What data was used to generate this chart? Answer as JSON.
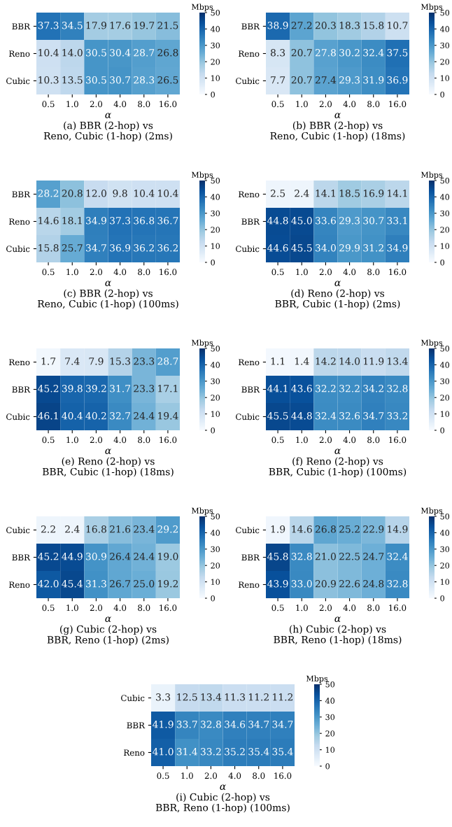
{
  "chart_data": [
    {
      "type": "heatmap",
      "title": "(a) BBR (2-hop) vs\nReno, Cubic (1-hop) (2ms)",
      "xlabel": "α",
      "clabel": "Mbps",
      "clim": [
        0,
        50
      ],
      "cticks": [
        0,
        10,
        20,
        30,
        40,
        50
      ],
      "data_labels": true,
      "categories": [
        "0.5",
        "1.0",
        "2.0",
        "4.0",
        "8.0",
        "16.0"
      ],
      "y_categories": [
        "BBR",
        "Reno",
        "Cubic"
      ],
      "cells": [
        [
          37.3,
          34.5,
          17.9,
          17.6,
          19.7,
          21.5
        ],
        [
          10.4,
          14.0,
          30.5,
          30.4,
          28.7,
          26.8
        ],
        [
          10.3,
          13.5,
          30.5,
          30.7,
          28.3,
          26.5
        ]
      ],
      "cell_labels": [
        [
          "37.3",
          "34.5",
          "17.9",
          "17.6",
          "19.7",
          "21.5"
        ],
        [
          "10.4",
          "14.0",
          "30.5",
          "30.4",
          "28.7",
          "26.8"
        ],
        [
          "10.3",
          "13.5",
          "30.5",
          "30.7",
          "28.3",
          "26.5"
        ]
      ]
    },
    {
      "type": "heatmap",
      "title": "(b) BBR (2-hop) vs\nReno, Cubic (1-hop) (18ms)",
      "xlabel": "α",
      "clabel": "Mbps",
      "clim": [
        0,
        50
      ],
      "cticks": [
        0,
        10,
        20,
        30,
        40,
        50
      ],
      "data_labels": true,
      "categories": [
        "0.5",
        "1.0",
        "2.0",
        "4.0",
        "8.0",
        "16.0"
      ],
      "y_categories": [
        "BBR",
        "Reno",
        "Cubic"
      ],
      "cells": [
        [
          38.9,
          27.2,
          20.3,
          18.3,
          15.8,
          10.7
        ],
        [
          8.3,
          20.7,
          27.8,
          30.2,
          32.4,
          37.5
        ],
        [
          7.7,
          20.7,
          27.4,
          29.3,
          31.9,
          36.9
        ]
      ]
    },
    {
      "type": "heatmap",
      "title": "(c) BBR (2-hop) vs\nReno, Cubic (1-hop) (100ms)",
      "xlabel": "α",
      "clabel": "Mbps",
      "clim": [
        0,
        50
      ],
      "cticks": [
        0,
        10,
        20,
        30,
        40,
        50
      ],
      "data_labels": true,
      "categories": [
        "0.5",
        "1.0",
        "2.0",
        "4.0",
        "8.0",
        "16.0"
      ],
      "y_categories": [
        "BBR",
        "Reno",
        "Cubic"
      ],
      "cells": [
        [
          28.2,
          20.8,
          12.0,
          9.8,
          10.4,
          10.4
        ],
        [
          14.6,
          18.1,
          34.9,
          37.3,
          36.8,
          36.7
        ],
        [
          15.8,
          25.7,
          34.7,
          36.9,
          36.2,
          36.2
        ]
      ],
      "cell_labels": [
        [
          "28.2",
          "20.8",
          "12.0",
          "9.8",
          "10.4",
          "10.4"
        ],
        [
          "14.6",
          "18.1",
          "34.9",
          "37.3",
          "36.8",
          "36.7"
        ],
        [
          "15.8",
          "25.7",
          "34.7",
          "36.9",
          "36.2",
          "36.2"
        ]
      ]
    },
    {
      "type": "heatmap",
      "title": "(d) Reno (2-hop) vs\nBBR, Cubic (1-hop) (2ms)",
      "xlabel": "α",
      "clabel": "Mbps",
      "clim": [
        0,
        50
      ],
      "cticks": [
        0,
        10,
        20,
        30,
        40,
        50
      ],
      "data_labels": true,
      "categories": [
        "0.5",
        "1.0",
        "2.0",
        "4.0",
        "8.0",
        "16.0"
      ],
      "y_categories": [
        "Reno",
        "BBR",
        "Cubic"
      ],
      "cells": [
        [
          2.5,
          2.4,
          14.1,
          18.5,
          16.9,
          14.1
        ],
        [
          44.8,
          45.0,
          33.6,
          29.3,
          30.7,
          33.1
        ],
        [
          44.6,
          45.5,
          34.0,
          29.9,
          31.2,
          34.9
        ]
      ],
      "cell_labels": [
        [
          "2.5",
          "2.4",
          "14.1",
          "18.5",
          "16.9",
          "14.1"
        ],
        [
          "44.8",
          "45.0",
          "33.6",
          "29.3",
          "30.7",
          "33.1"
        ],
        [
          "44.6",
          "45.5",
          "34.0",
          "29.9",
          "31.2",
          "34.9"
        ]
      ]
    },
    {
      "type": "heatmap",
      "title": "(e) Reno (2-hop) vs\nBBR, Cubic (1-hop) (18ms)",
      "xlabel": "α",
      "clabel": "Mbps",
      "clim": [
        0,
        50
      ],
      "cticks": [
        0,
        10,
        20,
        30,
        40,
        50
      ],
      "data_labels": true,
      "categories": [
        "0.5",
        "1.0",
        "2.0",
        "4.0",
        "8.0",
        "16.0"
      ],
      "y_categories": [
        "Reno",
        "BBR",
        "Cubic"
      ],
      "cells": [
        [
          1.7,
          7.4,
          7.9,
          15.3,
          23.3,
          28.7
        ],
        [
          45.2,
          39.8,
          39.2,
          31.7,
          23.3,
          17.1
        ],
        [
          46.1,
          40.4,
          40.2,
          32.7,
          24.4,
          19.4
        ]
      ]
    },
    {
      "type": "heatmap",
      "title": "(f) Reno (2-hop) vs\nBBR, Cubic (1-hop) (100ms)",
      "xlabel": "α",
      "clabel": "Mbps",
      "clim": [
        0,
        50
      ],
      "cticks": [
        0,
        10,
        20,
        30,
        40,
        50
      ],
      "data_labels": true,
      "categories": [
        "0.5",
        "1.0",
        "2.0",
        "4.0",
        "8.0",
        "16.0"
      ],
      "y_categories": [
        "Reno",
        "BBR",
        "Cubic"
      ],
      "cells": [
        [
          1.1,
          1.4,
          14.2,
          14.0,
          11.9,
          13.4
        ],
        [
          44.1,
          43.6,
          32.2,
          32.2,
          34.2,
          32.8
        ],
        [
          45.5,
          44.8,
          32.4,
          32.6,
          34.7,
          33.2
        ]
      ],
      "cell_labels": [
        [
          "1.1",
          "1.4",
          "14.2",
          "14.0",
          "11.9",
          "13.4"
        ],
        [
          "44.1",
          "43.6",
          "32.2",
          "32.2",
          "34.2",
          "32.8"
        ],
        [
          "45.5",
          "44.8",
          "32.4",
          "32.6",
          "34.7",
          "33.2"
        ]
      ]
    },
    {
      "type": "heatmap",
      "title": "(g) Cubic (2-hop) vs\nBBR, Reno (1-hop) (2ms)",
      "xlabel": "α",
      "clabel": "Mbps",
      "clim": [
        0,
        50
      ],
      "cticks": [
        0,
        10,
        20,
        30,
        40,
        50
      ],
      "data_labels": true,
      "categories": [
        "0.5",
        "1.0",
        "2.0",
        "4.0",
        "8.0",
        "16.0"
      ],
      "y_categories": [
        "Cubic",
        "BBR",
        "Reno"
      ],
      "cells": [
        [
          2.2,
          2.4,
          16.8,
          21.6,
          23.4,
          29.2
        ],
        [
          45.2,
          44.9,
          30.9,
          26.4,
          24.4,
          19.0
        ],
        [
          42.0,
          45.4,
          31.3,
          26.7,
          25.0,
          19.2
        ]
      ],
      "cell_labels": [
        [
          "2.2",
          "2.4",
          "16.8",
          "21.6",
          "23.4",
          "29.2"
        ],
        [
          "45.2",
          "44.9",
          "30.9",
          "26.4",
          "24.4",
          "19.0"
        ],
        [
          "42.0",
          "45.4",
          "31.3",
          "26.7",
          "25.0",
          "19.2"
        ]
      ]
    },
    {
      "type": "heatmap",
      "title": "(h) Cubic (2-hop) vs\nBBR, Reno (1-hop) (18ms)",
      "xlabel": "α",
      "clabel": "Mbps",
      "clim": [
        0,
        50
      ],
      "cticks": [
        0,
        10,
        20,
        30,
        40,
        50
      ],
      "data_labels": true,
      "categories": [
        "0.5",
        "1.0",
        "2.0",
        "4.0",
        "8.0",
        "16.0"
      ],
      "y_categories": [
        "Cubic",
        "BBR",
        "Reno"
      ],
      "cells": [
        [
          1.9,
          14.6,
          26.8,
          25.2,
          22.9,
          14.9
        ],
        [
          45.8,
          32.8,
          21.0,
          22.5,
          24.7,
          32.4
        ],
        [
          43.9,
          33.0,
          20.9,
          22.6,
          24.8,
          32.8
        ]
      ],
      "cell_labels": [
        [
          "1.9",
          "14.6",
          "26.8",
          "25.2",
          "22.9",
          "14.9"
        ],
        [
          "45.8",
          "32.8",
          "21.0",
          "22.5",
          "24.7",
          "32.4"
        ],
        [
          "43.9",
          "33.0",
          "20.9",
          "22.6",
          "24.8",
          "32.8"
        ]
      ]
    },
    {
      "type": "heatmap",
      "title": "(i) Cubic (2-hop) vs\nBBR, Reno (1-hop) (100ms)",
      "xlabel": "α",
      "clabel": "Mbps",
      "clim": [
        0,
        50
      ],
      "cticks": [
        0,
        10,
        20,
        30,
        40,
        50
      ],
      "data_labels": true,
      "categories": [
        "0.5",
        "1.0",
        "2.0",
        "4.0",
        "8.0",
        "16.0"
      ],
      "y_categories": [
        "Cubic",
        "BBR",
        "Reno"
      ],
      "cells": [
        [
          3.3,
          12.5,
          13.4,
          11.3,
          11.2,
          11.2
        ],
        [
          41.9,
          33.7,
          32.8,
          34.6,
          34.7,
          34.7
        ],
        [
          41.0,
          31.4,
          33.2,
          35.2,
          35.4,
          35.4
        ]
      ],
      "cell_labels": [
        [
          "3.3",
          "12.5",
          "13.4",
          "11.3",
          "11.2",
          "11.2"
        ],
        [
          "41.9",
          "33.7",
          "32.8",
          "34.6",
          "34.7",
          "34.7"
        ],
        [
          "41.0",
          "31.4",
          "33.2",
          "35.2",
          "35.4",
          "35.4"
        ]
      ]
    }
  ]
}
